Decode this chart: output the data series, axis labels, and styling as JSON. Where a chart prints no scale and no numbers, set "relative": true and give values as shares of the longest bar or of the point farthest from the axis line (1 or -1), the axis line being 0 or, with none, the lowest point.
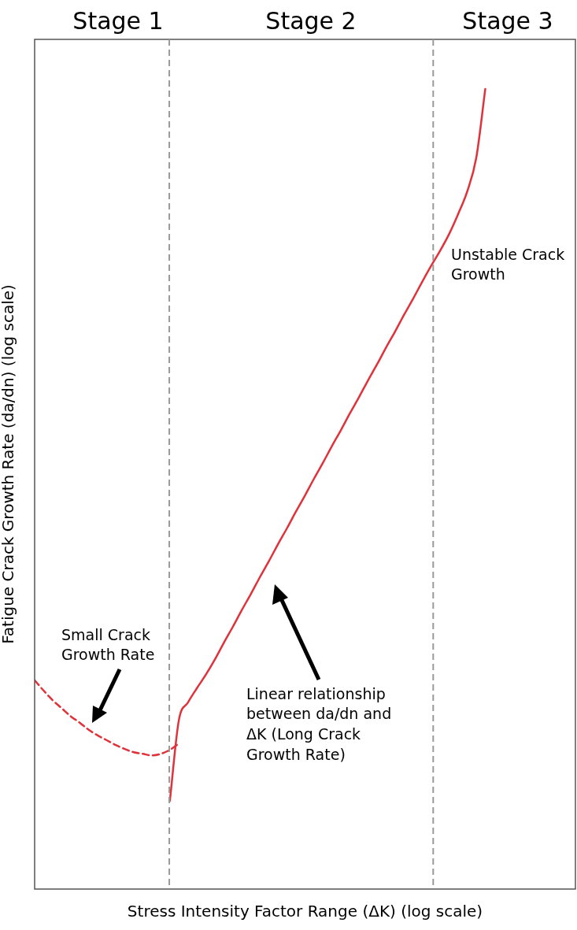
{
  "chart_data": {
    "type": "line",
    "relative": true,
    "xlabel": "Stress Intensity Factor Range (ΔK) (log scale)",
    "ylabel": "Fatigue Crack Growth Rate (da/dn) (log scale)",
    "categories": [
      null,
      null,
      null,
      null,
      null,
      null,
      null,
      null,
      null,
      null,
      null,
      null,
      null,
      null,
      null,
      null,
      null,
      null,
      null,
      null,
      null,
      null,
      null,
      null,
      null,
      null,
      null,
      null,
      null,
      null,
      null,
      null,
      null,
      null,
      null,
      null,
      null,
      null,
      null,
      null,
      null,
      null,
      null,
      null,
      null,
      null,
      null,
      null,
      null,
      null,
      null,
      null,
      null,
      null,
      null,
      null,
      null,
      null,
      null,
      null,
      null
    ],
    "series": [
      {
        "color": "#e0323a",
        "line_style": "dashed",
        "values": [
          0.261,
          0.248,
          0.236,
          0.226,
          0.216,
          0.208,
          0.199,
          0.192,
          0.186,
          0.18,
          0.175,
          0.171,
          0.169,
          0.167,
          0.169,
          0.174,
          0.182,
          null,
          null,
          null,
          null,
          null,
          null,
          null,
          null,
          null,
          null,
          null,
          null,
          null,
          null,
          null,
          null,
          null,
          null,
          null,
          null,
          null,
          null,
          null,
          null,
          null,
          null,
          null,
          null,
          null,
          null,
          null,
          null,
          null,
          null,
          null,
          null,
          null,
          null,
          null,
          null,
          null,
          null,
          null,
          null
        ]
      },
      {
        "color": "#e0323a",
        "line_style": "solid",
        "values": [
          null,
          null,
          null,
          null,
          null,
          null,
          null,
          null,
          null,
          null,
          null,
          null,
          null,
          null,
          null,
          0.11,
          0.211,
          0.233,
          0.251,
          0.268,
          0.287,
          0.308,
          0.328,
          0.349,
          0.369,
          0.39,
          0.41,
          0.431,
          0.451,
          0.472,
          0.492,
          0.513,
          0.533,
          0.554,
          0.574,
          0.595,
          0.615,
          0.636,
          0.656,
          0.677,
          0.697,
          0.718,
          0.738,
          0.759,
          0.779,
          0.798,
          0.819,
          0.844,
          0.872,
          0.914,
          1,
          null,
          null,
          null,
          null,
          null,
          null,
          null,
          null,
          null,
          null
        ]
      }
    ],
    "annotations": [
      "Stage 1",
      "Stage 2",
      "Stage 3",
      "Small Crack Growth Rate",
      "Linear relationship between da/dn and ΔK (Long Crack Growth Rate)",
      "Unstable Crack Growth"
    ],
    "grid": false,
    "legend": false,
    "marker": "none"
  }
}
